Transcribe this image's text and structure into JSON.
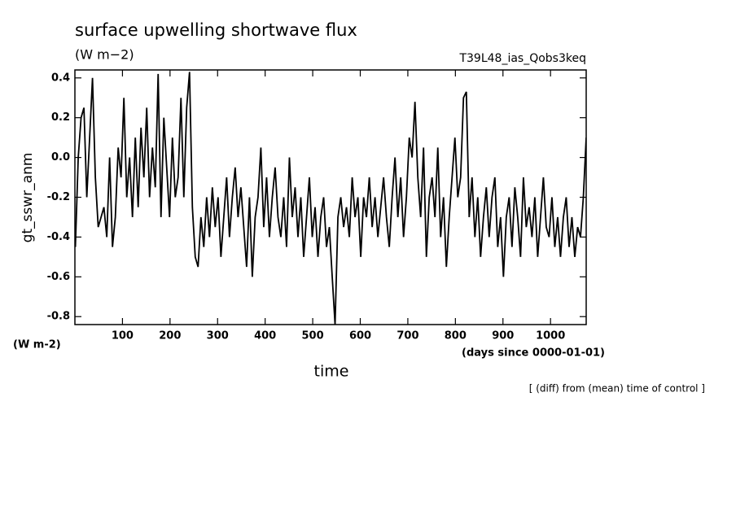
{
  "chart_data": {
    "type": "line",
    "title": "surface upwelling shortwave flux",
    "units_top": "(W m−2)",
    "run_label": "T39L48_ias_Qobs3keq",
    "y_label": "gt_sswr_anm",
    "units_bottom": "(W m-2)",
    "x_units": "(days since 0000-01-01)",
    "x_label": "time",
    "note": "[ (diff) from (mean) time of control ]",
    "color": "#000000",
    "xlim": [
      0,
      1075
    ],
    "ylim": [
      -0.84,
      0.44
    ],
    "xticks": [
      100,
      200,
      300,
      400,
      500,
      600,
      700,
      800,
      900,
      1000
    ],
    "yticks": [
      0.4,
      0.2,
      {
        "value": 0,
        "label": "0.0"
      },
      -0.2,
      -0.4,
      -0.6,
      -0.8
    ],
    "x": [
      1,
      7,
      13,
      19,
      25,
      31,
      37,
      43,
      49,
      55,
      61,
      67,
      73,
      79,
      85,
      91,
      97,
      103,
      109,
      115,
      121,
      127,
      133,
      139,
      145,
      151,
      157,
      163,
      169,
      175,
      181,
      187,
      193,
      199,
      205,
      211,
      217,
      223,
      229,
      235,
      241,
      247,
      253,
      259,
      265,
      271,
      277,
      283,
      289,
      295,
      301,
      307,
      313,
      319,
      325,
      331,
      337,
      343,
      349,
      355,
      361,
      367,
      373,
      379,
      385,
      391,
      397,
      403,
      409,
      415,
      421,
      427,
      433,
      439,
      445,
      451,
      457,
      463,
      469,
      475,
      481,
      487,
      493,
      499,
      505,
      511,
      517,
      523,
      529,
      535,
      541,
      547,
      553,
      559,
      565,
      571,
      577,
      583,
      589,
      595,
      601,
      607,
      613,
      619,
      625,
      631,
      637,
      643,
      649,
      655,
      661,
      667,
      673,
      679,
      685,
      691,
      697,
      703,
      709,
      715,
      721,
      727,
      733,
      739,
      745,
      751,
      757,
      763,
      769,
      775,
      781,
      787,
      793,
      799,
      805,
      811,
      817,
      823,
      829,
      835,
      841,
      847,
      853,
      859,
      865,
      871,
      877,
      883,
      889,
      895,
      901,
      907,
      913,
      919,
      925,
      931,
      937,
      943,
      949,
      955,
      961,
      967,
      973,
      979,
      985,
      991,
      997,
      1003,
      1009,
      1015,
      1021,
      1027,
      1033,
      1039,
      1045,
      1051,
      1057,
      1063,
      1069,
      1075
    ],
    "values": [
      -0.45,
      0.0,
      0.2,
      0.25,
      -0.2,
      0.1,
      0.4,
      -0.1,
      -0.35,
      -0.3,
      -0.25,
      -0.4,
      0.0,
      -0.45,
      -0.3,
      0.05,
      -0.1,
      0.3,
      -0.2,
      0.0,
      -0.3,
      0.1,
      -0.25,
      0.15,
      -0.1,
      0.25,
      -0.2,
      0.05,
      -0.15,
      0.42,
      -0.3,
      0.2,
      -0.05,
      -0.3,
      0.1,
      -0.2,
      -0.1,
      0.3,
      -0.2,
      0.25,
      0.43,
      -0.25,
      -0.5,
      -0.55,
      -0.3,
      -0.45,
      -0.2,
      -0.4,
      -0.15,
      -0.35,
      -0.2,
      -0.5,
      -0.3,
      -0.1,
      -0.4,
      -0.2,
      -0.05,
      -0.3,
      -0.15,
      -0.35,
      -0.55,
      -0.2,
      -0.6,
      -0.3,
      -0.2,
      0.05,
      -0.35,
      -0.1,
      -0.4,
      -0.2,
      -0.05,
      -0.3,
      -0.4,
      -0.2,
      -0.45,
      0.0,
      -0.3,
      -0.15,
      -0.4,
      -0.2,
      -0.5,
      -0.3,
      -0.1,
      -0.4,
      -0.25,
      -0.5,
      -0.3,
      -0.2,
      -0.45,
      -0.35,
      -0.6,
      -0.84,
      -0.3,
      -0.2,
      -0.35,
      -0.25,
      -0.4,
      -0.1,
      -0.3,
      -0.2,
      -0.5,
      -0.2,
      -0.3,
      -0.1,
      -0.35,
      -0.2,
      -0.4,
      -0.25,
      -0.1,
      -0.3,
      -0.45,
      -0.2,
      0.0,
      -0.3,
      -0.1,
      -0.4,
      -0.2,
      0.1,
      0.0,
      0.28,
      -0.1,
      -0.3,
      0.05,
      -0.5,
      -0.2,
      -0.1,
      -0.3,
      0.05,
      -0.4,
      -0.2,
      -0.55,
      -0.3,
      -0.1,
      0.1,
      -0.2,
      -0.1,
      0.3,
      0.33,
      -0.3,
      -0.1,
      -0.4,
      -0.2,
      -0.5,
      -0.3,
      -0.15,
      -0.4,
      -0.2,
      -0.1,
      -0.45,
      -0.3,
      -0.6,
      -0.3,
      -0.2,
      -0.45,
      -0.15,
      -0.3,
      -0.5,
      -0.1,
      -0.35,
      -0.25,
      -0.4,
      -0.2,
      -0.5,
      -0.3,
      -0.1,
      -0.35,
      -0.4,
      -0.2,
      -0.45,
      -0.3,
      -0.5,
      -0.3,
      -0.2,
      -0.45,
      -0.3,
      -0.5,
      -0.35,
      -0.4,
      -0.2,
      0.1
    ]
  }
}
